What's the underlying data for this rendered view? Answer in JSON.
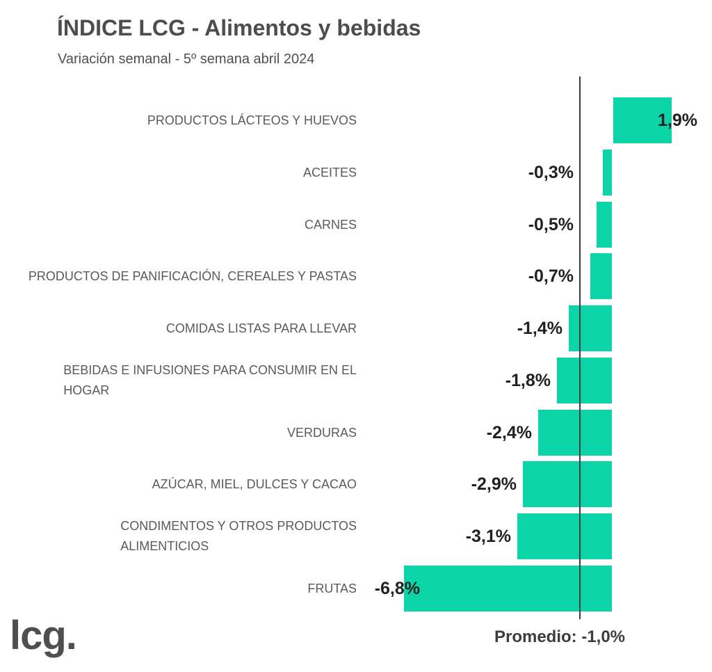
{
  "header": {
    "title": "ÍNDICE LCG - Alimentos y bebidas",
    "subtitle": "Variación semanal - 5º semana abril 2024"
  },
  "chart_data": {
    "type": "bar",
    "orientation": "horizontal",
    "title": "ÍNDICE LCG - Alimentos y bebidas",
    "subtitle": "Variación semanal - 5º semana abril 2024",
    "unit": "% variación semanal",
    "categories": [
      "PRODUCTOS LÁCTEOS Y HUEVOS",
      "ACEITES",
      "CARNES",
      "PRODUCTOS DE PANIFICACIÓN, CEREALES Y PASTAS",
      "COMIDAS LISTAS PARA LLEVAR",
      "BEBIDAS E INFUSIONES PARA CONSUMIR EN EL HOGAR",
      "VERDURAS",
      "AZÚCAR, MIEL, DULCES Y CACAO",
      "CONDIMENTOS Y OTROS PRODUCTOS ALIMENTICIOS",
      "FRUTAS"
    ],
    "category_lines": [
      [
        "PRODUCTOS LÁCTEOS Y HUEVOS"
      ],
      [
        "ACEITES"
      ],
      [
        "CARNES"
      ],
      [
        "PRODUCTOS DE PANIFICACIÓN, CEREALES Y PASTAS"
      ],
      [
        "COMIDAS LISTAS PARA LLEVAR"
      ],
      [
        "BEBIDAS E INFUSIONES PARA CONSUMIR EN EL",
        "HOGAR"
      ],
      [
        "VERDURAS"
      ],
      [
        "AZÚCAR, MIEL, DULCES Y CACAO"
      ],
      [
        "CONDIMENTOS Y OTROS PRODUCTOS",
        "ALIMENTICIOS"
      ],
      [
        "FRUTAS"
      ]
    ],
    "values": [
      1.9,
      -0.3,
      -0.5,
      -0.7,
      -1.4,
      -1.8,
      -2.4,
      -2.9,
      -3.1,
      -6.8
    ],
    "value_labels": [
      "1,9%",
      "-0,3%",
      "-0,5%",
      "-0,7%",
      "-1,4%",
      "-1,8%",
      "-2,4%",
      "-2,9%",
      "-3,1%",
      "-6,8%"
    ],
    "value_label_over_bar": [
      false,
      false,
      false,
      false,
      false,
      false,
      false,
      false,
      false,
      true
    ],
    "xlim": [
      -7.0,
      2.2
    ],
    "grid": false,
    "legend": false,
    "reference_line": {
      "value": -1.0,
      "label": "Promedio: -1,0%"
    }
  },
  "footer": {
    "average_label": "Promedio: -1,0%",
    "logo_text": "lcg."
  },
  "colors": {
    "bar": "#0ad4a8",
    "reference_line": "#3c3c3c",
    "title_text": "#4d4d4d",
    "category_text": "#5a5a5a",
    "value_text": "#212121",
    "background": "#ffffff"
  }
}
